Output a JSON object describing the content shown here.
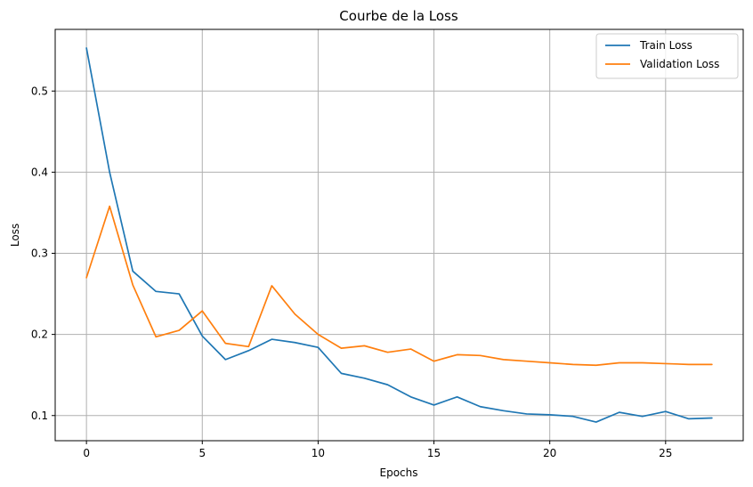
{
  "chart_data": {
    "type": "line",
    "title": "Courbe de la Loss",
    "xlabel": "Epochs",
    "ylabel": "Loss",
    "xlim": [
      -1.35,
      28.35
    ],
    "ylim": [
      0.069,
      0.576
    ],
    "xticks": [
      0,
      5,
      10,
      15,
      20,
      25
    ],
    "yticks": [
      0.1,
      0.2,
      0.3,
      0.4,
      0.5
    ],
    "grid": true,
    "legend_position": "top-right",
    "x": [
      0,
      1,
      2,
      3,
      4,
      5,
      6,
      7,
      8,
      9,
      10,
      11,
      12,
      13,
      14,
      15,
      16,
      17,
      18,
      19,
      20,
      21,
      22,
      23,
      24,
      25,
      26,
      27
    ],
    "series": [
      {
        "name": "Train Loss",
        "color": "#1f77b4",
        "values": [
          0.553,
          0.4,
          0.278,
          0.253,
          0.25,
          0.198,
          0.169,
          0.18,
          0.194,
          0.19,
          0.184,
          0.152,
          0.146,
          0.138,
          0.123,
          0.113,
          0.123,
          0.111,
          0.106,
          0.102,
          0.101,
          0.099,
          0.092,
          0.104,
          0.099,
          0.105,
          0.096,
          0.097
        ]
      },
      {
        "name": "Validation Loss",
        "color": "#ff7f0e",
        "values": [
          0.27,
          0.358,
          0.261,
          0.197,
          0.205,
          0.229,
          0.189,
          0.185,
          0.26,
          0.225,
          0.2,
          0.183,
          0.186,
          0.178,
          0.182,
          0.167,
          0.175,
          0.174,
          0.169,
          0.167,
          0.165,
          0.163,
          0.162,
          0.165,
          0.165,
          0.164,
          0.163,
          0.163
        ]
      }
    ]
  }
}
